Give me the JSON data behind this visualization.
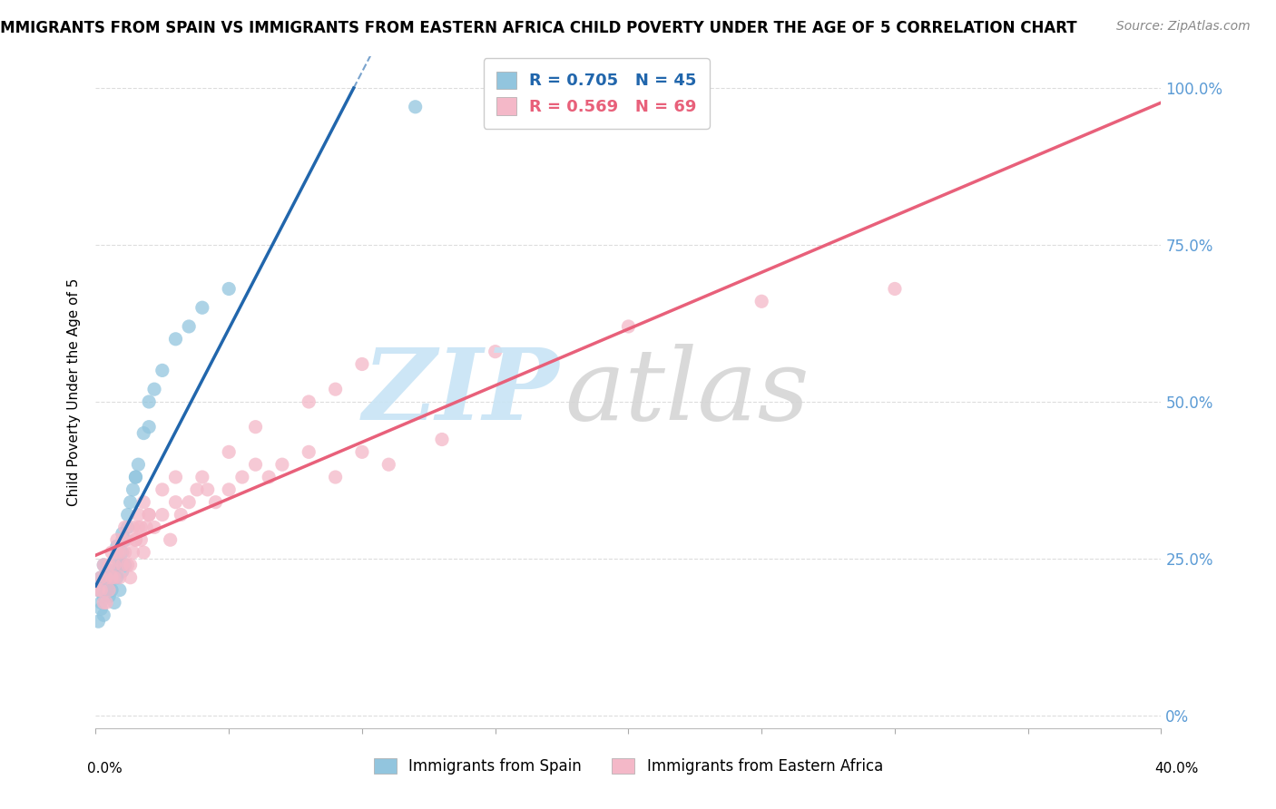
{
  "title": "IMMIGRANTS FROM SPAIN VS IMMIGRANTS FROM EASTERN AFRICA CHILD POVERTY UNDER THE AGE OF 5 CORRELATION CHART",
  "source": "Source: ZipAtlas.com",
  "ylabel": "Child Poverty Under the Age of 5",
  "legend_blue_text": "R = 0.705   N = 45",
  "legend_pink_text": "R = 0.569   N = 69",
  "blue_color": "#92c5de",
  "pink_color": "#f4b8c8",
  "blue_line_color": "#2166ac",
  "pink_line_color": "#e8607a",
  "grid_color": "#dddddd",
  "right_label_color": "#5b9bd5",
  "blue_x": [
    0.001,
    0.002,
    0.002,
    0.003,
    0.003,
    0.004,
    0.004,
    0.005,
    0.005,
    0.006,
    0.006,
    0.007,
    0.007,
    0.008,
    0.008,
    0.009,
    0.009,
    0.01,
    0.01,
    0.011,
    0.011,
    0.012,
    0.012,
    0.013,
    0.014,
    0.015,
    0.016,
    0.018,
    0.02,
    0.022,
    0.025,
    0.03,
    0.035,
    0.04,
    0.05,
    0.001,
    0.002,
    0.003,
    0.004,
    0.006,
    0.008,
    0.01,
    0.015,
    0.02,
    0.12
  ],
  "blue_y": [
    0.2,
    0.22,
    0.18,
    0.24,
    0.16,
    0.2,
    0.22,
    0.21,
    0.19,
    0.23,
    0.2,
    0.22,
    0.18,
    0.25,
    0.22,
    0.24,
    0.2,
    0.23,
    0.26,
    0.28,
    0.24,
    0.3,
    0.32,
    0.34,
    0.36,
    0.38,
    0.4,
    0.45,
    0.5,
    0.52,
    0.55,
    0.6,
    0.62,
    0.65,
    0.68,
    0.15,
    0.17,
    0.19,
    0.21,
    0.23,
    0.27,
    0.29,
    0.38,
    0.46,
    0.97
  ],
  "pink_x": [
    0.001,
    0.002,
    0.003,
    0.004,
    0.005,
    0.006,
    0.007,
    0.008,
    0.009,
    0.01,
    0.011,
    0.012,
    0.013,
    0.014,
    0.015,
    0.016,
    0.017,
    0.018,
    0.019,
    0.02,
    0.022,
    0.025,
    0.028,
    0.03,
    0.032,
    0.035,
    0.038,
    0.04,
    0.042,
    0.045,
    0.05,
    0.055,
    0.06,
    0.065,
    0.07,
    0.08,
    0.09,
    0.1,
    0.11,
    0.13,
    0.002,
    0.003,
    0.004,
    0.005,
    0.006,
    0.007,
    0.008,
    0.009,
    0.01,
    0.011,
    0.012,
    0.013,
    0.014,
    0.015,
    0.016,
    0.017,
    0.018,
    0.02,
    0.025,
    0.03,
    0.05,
    0.06,
    0.08,
    0.09,
    0.1,
    0.15,
    0.2,
    0.25,
    0.3
  ],
  "pink_y": [
    0.2,
    0.22,
    0.24,
    0.18,
    0.2,
    0.22,
    0.24,
    0.26,
    0.22,
    0.24,
    0.26,
    0.24,
    0.22,
    0.26,
    0.28,
    0.3,
    0.28,
    0.26,
    0.3,
    0.32,
    0.3,
    0.32,
    0.28,
    0.34,
    0.32,
    0.34,
    0.36,
    0.38,
    0.36,
    0.34,
    0.36,
    0.38,
    0.4,
    0.38,
    0.4,
    0.42,
    0.38,
    0.42,
    0.4,
    0.44,
    0.2,
    0.18,
    0.22,
    0.24,
    0.26,
    0.22,
    0.28,
    0.26,
    0.28,
    0.3,
    0.28,
    0.24,
    0.3,
    0.28,
    0.32,
    0.3,
    0.34,
    0.32,
    0.36,
    0.38,
    0.42,
    0.46,
    0.5,
    0.52,
    0.56,
    0.58,
    0.62,
    0.66,
    0.68
  ],
  "xlim": [
    0.0,
    0.4
  ],
  "ylim": [
    -0.02,
    1.05
  ],
  "yticks": [
    0.0,
    0.25,
    0.5,
    0.75,
    1.0
  ],
  "yticklabels_right": [
    "0%",
    "25.0%",
    "50.0%",
    "75.0%",
    "100.0%"
  ]
}
